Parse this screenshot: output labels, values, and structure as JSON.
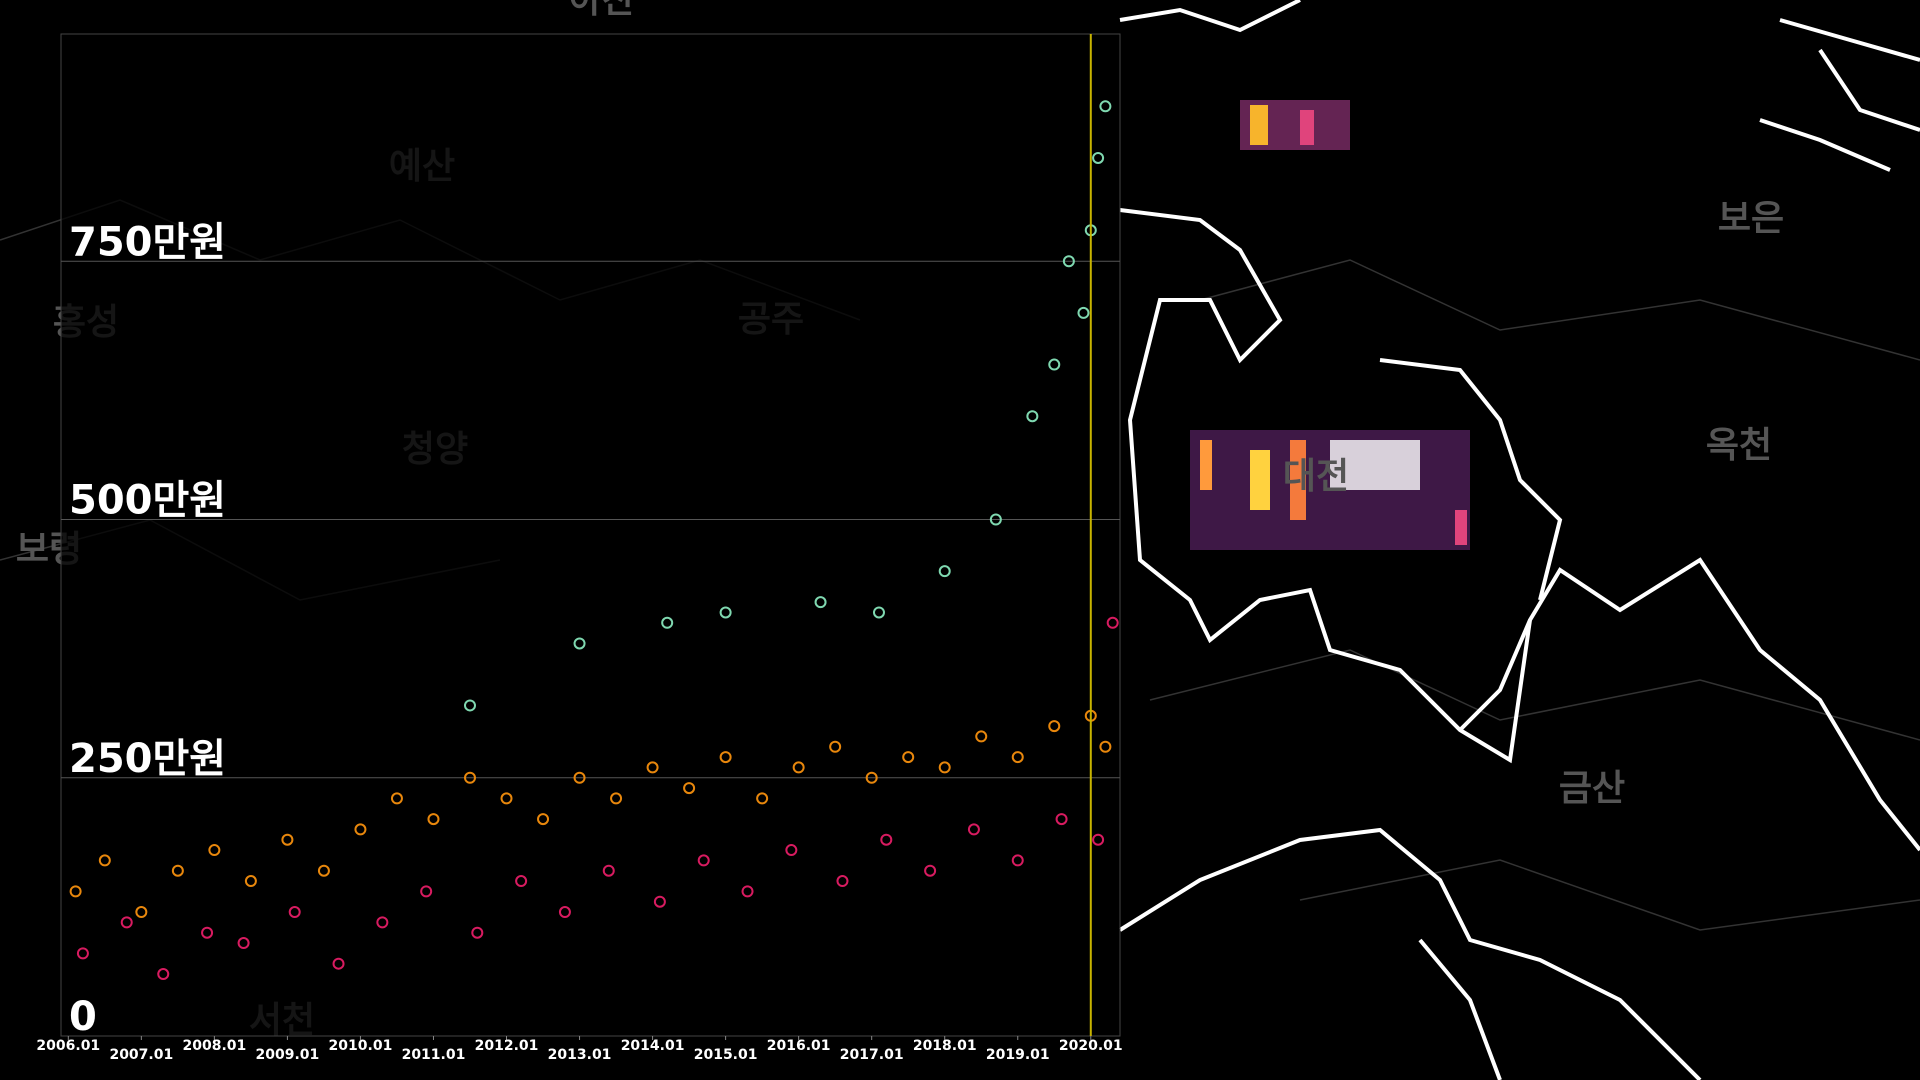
{
  "chart_data": {
    "type": "scatter",
    "xlim": [
      2005.9,
      2020.4
    ],
    "ylim": [
      0,
      970
    ],
    "xticks": [
      {
        "value": 2006,
        "label": "2006.01"
      },
      {
        "value": 2007,
        "label": "2007.01"
      },
      {
        "value": 2008,
        "label": "2008.01"
      },
      {
        "value": 2009,
        "label": "2009.01"
      },
      {
        "value": 2010,
        "label": "2010.01"
      },
      {
        "value": 2011,
        "label": "2011.01"
      },
      {
        "value": 2012,
        "label": "2012.01"
      },
      {
        "value": 2013,
        "label": "2013.01"
      },
      {
        "value": 2014,
        "label": "2014.01"
      },
      {
        "value": 2015,
        "label": "2015.01"
      },
      {
        "value": 2016,
        "label": "2016.01"
      },
      {
        "value": 2017,
        "label": "2017.01"
      },
      {
        "value": 2018,
        "label": "2018.01"
      },
      {
        "value": 2019,
        "label": "2019.01"
      },
      {
        "value": 2020,
        "label": "2020.01"
      }
    ],
    "yticks": [
      0,
      {
        "value": 250,
        "label": "250만원"
      },
      {
        "value": 500,
        "label": "500만원"
      },
      {
        "value": 750,
        "label": "750만원"
      }
    ],
    "grid": true,
    "vline": {
      "x": 2020,
      "color": "#c8b400"
    },
    "series": [
      {
        "color": "#e8870c",
        "x": [
          2006.1,
          2006.5,
          2007.0,
          2007.5,
          2008.0,
          2008.5,
          2009.0,
          2009.5,
          2010.0,
          2010.5,
          2011.0,
          2011.5,
          2012.0,
          2012.5,
          2013.0,
          2013.5,
          2014.0,
          2014.5,
          2015.0,
          2015.5,
          2016.0,
          2016.5,
          2017.0,
          2017.5,
          2018.0,
          2018.5,
          2019.0,
          2019.5,
          2020.0,
          2020.2
        ],
        "values": [
          140,
          170,
          120,
          160,
          180,
          150,
          190,
          160,
          200,
          230,
          210,
          250,
          230,
          210,
          250,
          230,
          260,
          240,
          270,
          230,
          260,
          280,
          250,
          270,
          260,
          290,
          270,
          300,
          310,
          280
        ]
      },
      {
        "color": "#d81b60",
        "x": [
          2006.2,
          2006.8,
          2007.3,
          2007.9,
          2008.4,
          2009.1,
          2009.7,
          2010.3,
          2010.9,
          2011.6,
          2012.2,
          2012.8,
          2013.4,
          2014.1,
          2014.7,
          2015.3,
          2015.9,
          2016.6,
          2017.2,
          2017.8,
          2018.4,
          2019.0,
          2019.6,
          2020.1,
          2020.3
        ],
        "values": [
          80,
          110,
          60,
          100,
          90,
          120,
          70,
          110,
          140,
          100,
          150,
          120,
          160,
          130,
          170,
          140,
          180,
          150,
          190,
          160,
          200,
          170,
          210,
          190,
          400
        ]
      },
      {
        "color": "#7fd8b0",
        "x": [
          2011.5,
          2013.0,
          2014.2,
          2015.0,
          2016.3,
          2017.1,
          2018.0,
          2018.7,
          2019.2,
          2019.5,
          2019.7,
          2019.9,
          2020.0,
          2020.1,
          2020.2
        ],
        "values": [
          320,
          380,
          400,
          410,
          420,
          410,
          450,
          500,
          600,
          650,
          750,
          700,
          780,
          850,
          900
        ]
      }
    ]
  },
  "map_labels": [
    "아산",
    "예산",
    "홍성",
    "공주",
    "청양",
    "보령",
    "서천",
    "대전",
    "보은",
    "옥천",
    "금산"
  ]
}
